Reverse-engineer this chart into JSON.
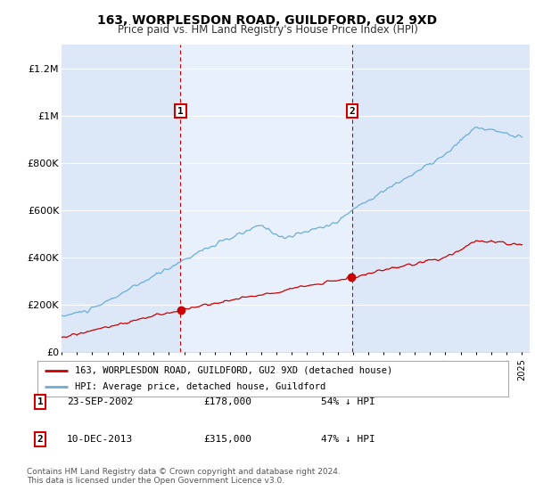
{
  "title": "163, WORPLESDON ROAD, GUILDFORD, GU2 9XD",
  "subtitle": "Price paid vs. HM Land Registry's House Price Index (HPI)",
  "background_color": "#ffffff",
  "plot_background": "#dce8f8",
  "plot_shaded_region": "#e8f0fb",
  "transaction1_year": 2002.75,
  "transaction1_price": 178000,
  "transaction2_year": 2013.92,
  "transaction2_price": 315000,
  "legend_entry1": "163, WORPLESDON ROAD, GUILDFORD, GU2 9XD (detached house)",
  "legend_entry2": "HPI: Average price, detached house, Guildford",
  "table_row1": [
    "1",
    "23-SEP-2002",
    "£178,000",
    "54% ↓ HPI"
  ],
  "table_row2": [
    "2",
    "10-DEC-2013",
    "£315,000",
    "47% ↓ HPI"
  ],
  "footnote1": "Contains HM Land Registry data © Crown copyright and database right 2024.",
  "footnote2": "This data is licensed under the Open Government Licence v3.0.",
  "ylim": [
    0,
    1300000
  ],
  "yticks": [
    0,
    200000,
    400000,
    600000,
    800000,
    1000000,
    1200000
  ],
  "ytick_labels": [
    "£0",
    "£200K",
    "£400K",
    "£600K",
    "£800K",
    "£1M",
    "£1.2M"
  ],
  "xmin": 1995,
  "xmax": 2025.5,
  "hpi_color": "#6baed6",
  "price_color": "#cc0000",
  "vline_color": "#cc0000",
  "marker_color": "#cc0000"
}
